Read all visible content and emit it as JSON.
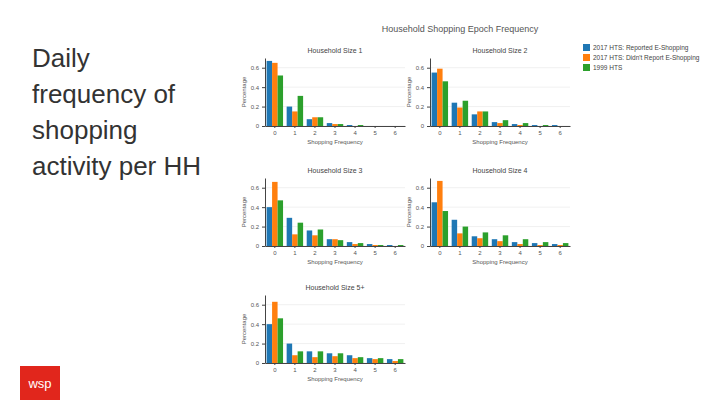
{
  "slide": {
    "heading": "Daily frequency of shopping activity per HH",
    "figure_title": "Household Shopping Epoch Frequency",
    "logo": "wsp"
  },
  "chart_data": [
    {
      "type": "bar",
      "title": "Household Size 1",
      "x_label": "Shopping Frequency",
      "y_label": "Percentage",
      "categories": [
        "0",
        "1",
        "2",
        "3",
        "4",
        "5",
        "6"
      ],
      "series": [
        {
          "name": "2017 HTS: Reported E-Shopping",
          "color": "#1f77b4",
          "values": [
            0.67,
            0.2,
            0.07,
            0.03,
            0.01,
            0,
            0
          ]
        },
        {
          "name": "2017 HTS: Didn't Report E-Shopping",
          "color": "#ff7f0e",
          "values": [
            0.65,
            0.15,
            0.09,
            0.02,
            0,
            0,
            0
          ]
        },
        {
          "name": "1999 HTS",
          "color": "#2ca02c",
          "values": [
            0.52,
            0.31,
            0.09,
            0.02,
            0.01,
            0,
            0
          ]
        }
      ],
      "ylim": [
        0,
        0.7
      ],
      "yticks": [
        0,
        0.2,
        0.4,
        0.6
      ],
      "grid": true,
      "legend": "right"
    },
    {
      "type": "bar",
      "title": "Household Size 2",
      "x_label": "Shopping Frequency",
      "y_label": "Percentage",
      "categories": [
        "0",
        "1",
        "2",
        "3",
        "4",
        "5",
        "6"
      ],
      "series": [
        {
          "color": "#1f77b4",
          "values": [
            0.55,
            0.24,
            0.12,
            0.04,
            0.02,
            0.01,
            0.01
          ]
        },
        {
          "color": "#ff7f0e",
          "values": [
            0.59,
            0.19,
            0.15,
            0.03,
            0.01,
            0,
            0
          ]
        },
        {
          "color": "#2ca02c",
          "values": [
            0.46,
            0.26,
            0.15,
            0.06,
            0.03,
            0.01,
            0
          ]
        }
      ],
      "ylim": [
        0,
        0.7
      ],
      "yticks": [
        0,
        0.2,
        0.4,
        0.6
      ],
      "grid": true
    },
    {
      "type": "bar",
      "title": "Household Size 3",
      "x_label": "Shopping Frequency",
      "y_label": "Percentage",
      "categories": [
        "0",
        "1",
        "2",
        "3",
        "4",
        "5",
        "6"
      ],
      "series": [
        {
          "color": "#1f77b4",
          "values": [
            0.4,
            0.29,
            0.16,
            0.07,
            0.04,
            0.02,
            0.01
          ]
        },
        {
          "color": "#ff7f0e",
          "values": [
            0.66,
            0.12,
            0.11,
            0.07,
            0.02,
            0.01,
            0
          ]
        },
        {
          "color": "#2ca02c",
          "values": [
            0.47,
            0.24,
            0.17,
            0.06,
            0.03,
            0.01,
            0.01
          ]
        }
      ],
      "ylim": [
        0,
        0.7
      ],
      "yticks": [
        0,
        0.2,
        0.4,
        0.6
      ],
      "grid": true
    },
    {
      "type": "bar",
      "title": "Household Size 4",
      "x_label": "Shopping Frequency",
      "y_label": "Percentage",
      "categories": [
        "0",
        "1",
        "2",
        "3",
        "4",
        "5",
        "6"
      ],
      "series": [
        {
          "color": "#1f77b4",
          "values": [
            0.45,
            0.27,
            0.1,
            0.07,
            0.04,
            0.03,
            0.02
          ]
        },
        {
          "color": "#ff7f0e",
          "values": [
            0.67,
            0.13,
            0.08,
            0.05,
            0.02,
            0.01,
            0.01
          ]
        },
        {
          "color": "#2ca02c",
          "values": [
            0.36,
            0.2,
            0.14,
            0.11,
            0.07,
            0.04,
            0.03
          ]
        }
      ],
      "ylim": [
        0,
        0.7
      ],
      "yticks": [
        0,
        0.2,
        0.4,
        0.6
      ],
      "grid": true
    },
    {
      "type": "bar",
      "title": "Household Size 5+",
      "x_label": "Shopping Frequency",
      "y_label": "Percentage",
      "categories": [
        "0",
        "1",
        "2",
        "3",
        "4",
        "5",
        "6"
      ],
      "series": [
        {
          "color": "#1f77b4",
          "values": [
            0.4,
            0.2,
            0.12,
            0.1,
            0.08,
            0.05,
            0.04
          ]
        },
        {
          "color": "#ff7f0e",
          "values": [
            0.63,
            0.08,
            0.06,
            0.07,
            0.05,
            0.04,
            0.02
          ]
        },
        {
          "color": "#2ca02c",
          "values": [
            0.46,
            0.12,
            0.12,
            0.1,
            0.06,
            0.05,
            0.04
          ]
        }
      ],
      "ylim": [
        0,
        0.7
      ],
      "yticks": [
        0,
        0.2,
        0.4,
        0.6
      ],
      "grid": true
    }
  ]
}
